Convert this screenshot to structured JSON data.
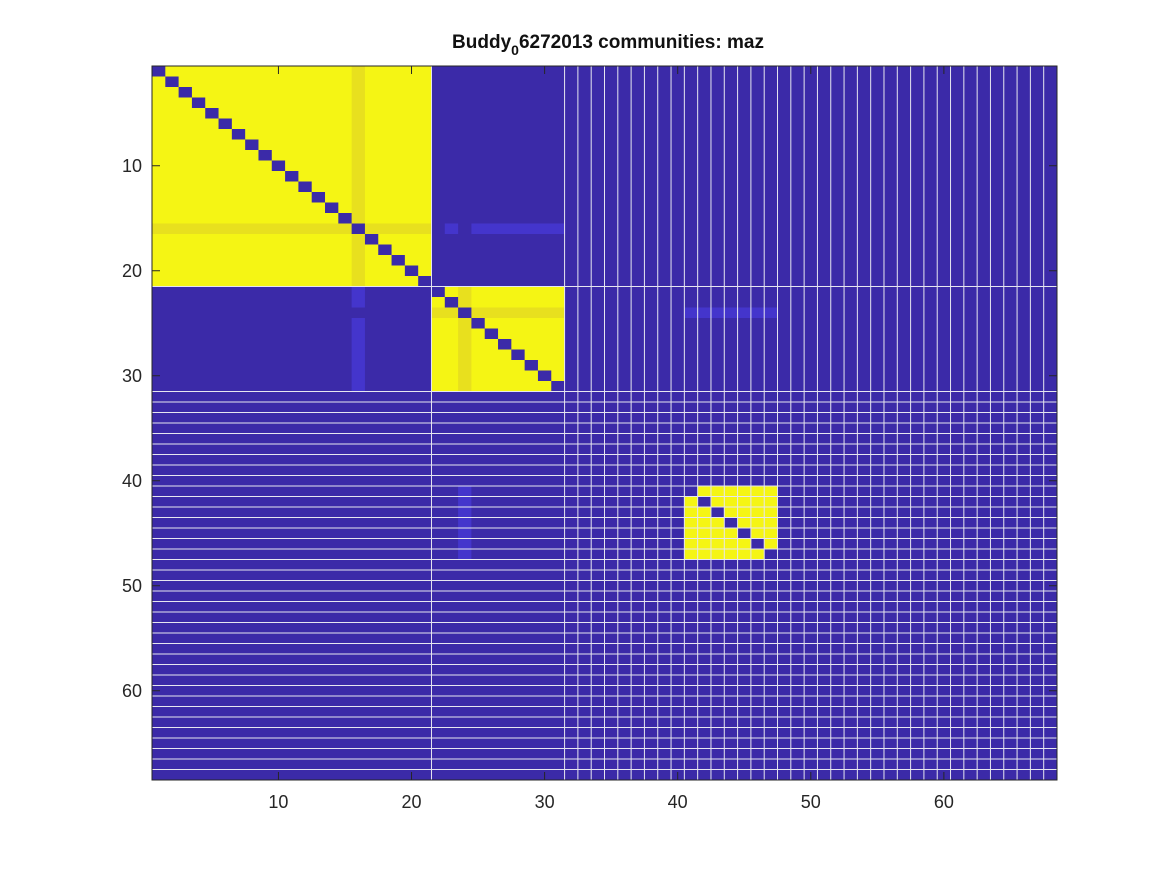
{
  "chart_data": {
    "type": "heatmap",
    "title": {
      "main": "Buddy",
      "subscript": "0",
      "rest": "6272013 communities: maz"
    },
    "xlabel": "",
    "ylabel": "",
    "n": 68,
    "xlim": [
      0.5,
      68.5
    ],
    "ylim": [
      0.5,
      68.5
    ],
    "y_direction": "reverse",
    "xticks": [
      10,
      20,
      30,
      40,
      50,
      60
    ],
    "yticks": [
      10,
      20,
      30,
      40,
      50,
      60
    ],
    "xtick_labels": [
      "10",
      "20",
      "30",
      "40",
      "50",
      "60"
    ],
    "ytick_labels": [
      "10",
      "20",
      "30",
      "40",
      "50",
      "60"
    ],
    "colors": {
      "background": "#3b2aa8",
      "same_community": "#f5f514",
      "diagonal": "#3b2aa8",
      "muted_yellow": "#e8e01e",
      "muted_blue": "#4435cc",
      "separator": "#e6e6f0"
    },
    "communities": [
      {
        "start": 1,
        "end": 21
      },
      {
        "start": 22,
        "end": 31
      },
      {
        "start": 41,
        "end": 47
      }
    ],
    "singletons_from": 32,
    "singletons_to": 68,
    "highlight_nodes": [
      {
        "node": 16,
        "cols": [
          [
            1,
            21
          ]
        ],
        "rows": [
          [
            1,
            21
          ]
        ],
        "color_key": "muted_yellow"
      },
      {
        "node": 24,
        "cols": [
          [
            22,
            31
          ]
        ],
        "rows": [
          [
            22,
            31
          ]
        ],
        "color_key": "muted_yellow"
      },
      {
        "node": 16,
        "cols": [
          [
            23,
            23
          ],
          [
            25,
            31
          ]
        ],
        "rows": [
          [
            22,
            23
          ],
          [
            25,
            31
          ]
        ],
        "color_key": "muted_blue",
        "symmetric_only_offblock": true
      },
      {
        "node": 24,
        "cols": [
          [
            41,
            47
          ]
        ],
        "rows": [
          [
            41,
            47
          ]
        ],
        "color_key": "muted_blue",
        "symmetric_only_offblock": true
      }
    ]
  }
}
